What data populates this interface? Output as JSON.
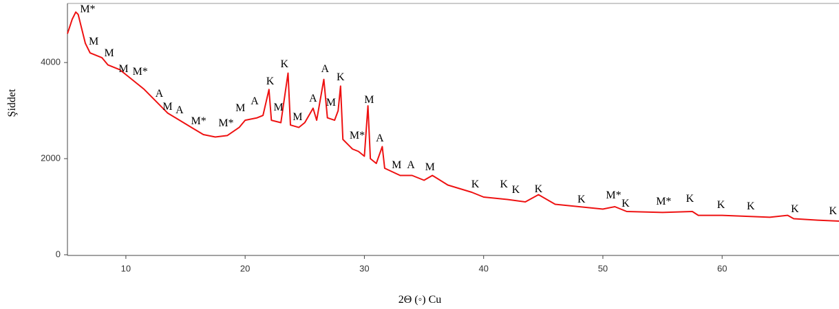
{
  "chart_data": {
    "type": "line",
    "xlabel": "2Θ (◦) Cu",
    "ylabel": "Şiddet",
    "xlim": [
      5.1,
      69.8
    ],
    "ylim": [
      0,
      5230
    ],
    "xticks": [
      10,
      20,
      30,
      40,
      50,
      60
    ],
    "yticks": [
      0,
      2000,
      4000
    ],
    "x": [
      5.1,
      5.5,
      5.8,
      6.0,
      6.3,
      6.6,
      7.0,
      8.0,
      8.5,
      9.5,
      10.5,
      11.5,
      12.5,
      13.5,
      14.5,
      15.5,
      16.5,
      17.5,
      18.5,
      19.5,
      20.0,
      21.0,
      21.5,
      22.0,
      22.2,
      23.0,
      23.6,
      23.8,
      24.5,
      25.0,
      25.7,
      26.0,
      26.6,
      26.9,
      27.5,
      27.8,
      28.0,
      28.2,
      29.0,
      29.5,
      30.0,
      30.3,
      30.5,
      31.0,
      31.5,
      31.7,
      33.0,
      34.0,
      35.0,
      35.7,
      37.0,
      39.0,
      40.0,
      42.0,
      43.5,
      44.6,
      46.0,
      48.0,
      50.0,
      51.0,
      52.0,
      55.0,
      57.5,
      58.0,
      60.0,
      62.0,
      64.0,
      65.5,
      66.0,
      68.0,
      69.8
    ],
    "series": [
      {
        "color": "#ee1111",
        "values": [
          4600,
          4900,
          5050,
          5000,
          4700,
          4400,
          4200,
          4100,
          3950,
          3850,
          3650,
          3450,
          3200,
          2950,
          2800,
          2650,
          2500,
          2450,
          2480,
          2650,
          2800,
          2850,
          2900,
          3440,
          2800,
          2750,
          3780,
          2700,
          2650,
          2750,
          3050,
          2800,
          3650,
          2850,
          2800,
          3000,
          3510,
          2400,
          2200,
          2150,
          2050,
          3100,
          2000,
          1900,
          2250,
          1800,
          1650,
          1650,
          1550,
          1650,
          1450,
          1300,
          1200,
          1150,
          1100,
          1250,
          1050,
          1000,
          950,
          1000,
          900,
          880,
          900,
          820,
          820,
          800,
          780,
          820,
          750,
          720,
          700
        ]
      }
    ],
    "annotations": [
      {
        "x": 6.8,
        "y": 5114,
        "text": "M*"
      },
      {
        "x": 7.3,
        "y": 4443,
        "text": "M"
      },
      {
        "x": 8.6,
        "y": 4200,
        "text": "M"
      },
      {
        "x": 9.8,
        "y": 3871,
        "text": "M"
      },
      {
        "x": 11.2,
        "y": 3814,
        "text": "M*"
      },
      {
        "x": 12.8,
        "y": 3357,
        "text": "A"
      },
      {
        "x": 13.5,
        "y": 3086,
        "text": "M"
      },
      {
        "x": 14.5,
        "y": 3014,
        "text": "A"
      },
      {
        "x": 16.1,
        "y": 2786,
        "text": "M*"
      },
      {
        "x": 18.4,
        "y": 2743,
        "text": "M*"
      },
      {
        "x": 19.6,
        "y": 3057,
        "text": "M"
      },
      {
        "x": 20.8,
        "y": 3200,
        "text": "A"
      },
      {
        "x": 22.1,
        "y": 3614,
        "text": "K"
      },
      {
        "x": 23.3,
        "y": 3971,
        "text": "K"
      },
      {
        "x": 22.8,
        "y": 3071,
        "text": "M"
      },
      {
        "x": 24.4,
        "y": 2871,
        "text": "M"
      },
      {
        "x": 25.7,
        "y": 3257,
        "text": "A"
      },
      {
        "x": 26.7,
        "y": 3871,
        "text": "A"
      },
      {
        "x": 27.2,
        "y": 3171,
        "text": "M"
      },
      {
        "x": 28.0,
        "y": 3700,
        "text": "K"
      },
      {
        "x": 30.4,
        "y": 3229,
        "text": "M"
      },
      {
        "x": 29.4,
        "y": 2486,
        "text": "M*"
      },
      {
        "x": 31.3,
        "y": 2429,
        "text": "A"
      },
      {
        "x": 32.7,
        "y": 1871,
        "text": "M"
      },
      {
        "x": 33.9,
        "y": 1871,
        "text": "A"
      },
      {
        "x": 35.5,
        "y": 1829,
        "text": "M"
      },
      {
        "x": 39.3,
        "y": 1471,
        "text": "K"
      },
      {
        "x": 41.7,
        "y": 1471,
        "text": "K"
      },
      {
        "x": 42.7,
        "y": 1357,
        "text": "K"
      },
      {
        "x": 44.6,
        "y": 1371,
        "text": "K"
      },
      {
        "x": 48.2,
        "y": 1157,
        "text": "K"
      },
      {
        "x": 50.9,
        "y": 1243,
        "text": "M*"
      },
      {
        "x": 51.9,
        "y": 1071,
        "text": "K"
      },
      {
        "x": 55.1,
        "y": 1114,
        "text": "M*"
      },
      {
        "x": 57.3,
        "y": 1171,
        "text": "K"
      },
      {
        "x": 59.9,
        "y": 1043,
        "text": "K"
      },
      {
        "x": 62.4,
        "y": 1014,
        "text": "K"
      },
      {
        "x": 66.1,
        "y": 957,
        "text": "K"
      },
      {
        "x": 69.3,
        "y": 914,
        "text": "K"
      }
    ]
  }
}
